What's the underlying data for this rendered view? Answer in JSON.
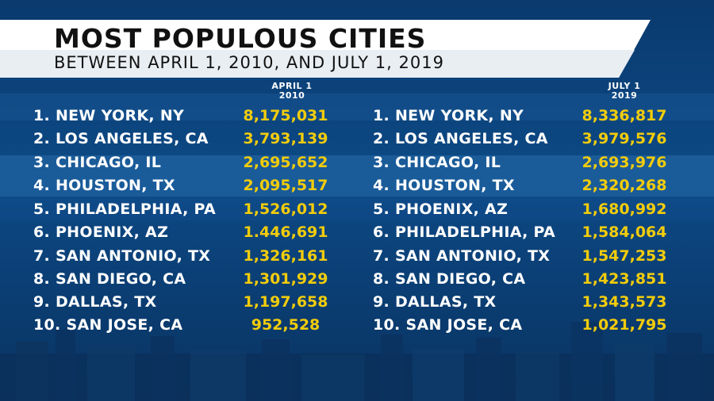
{
  "title": "MOST POPULOUS CITIES",
  "subtitle": "BETWEEN APRIL 1, 2010, AND JULY 1, 2019",
  "columns": [
    {
      "line1": "APRIL 1",
      "line2": "2010"
    },
    {
      "line1": "JULY 1",
      "line2": "2019"
    }
  ],
  "table_2010": [
    {
      "city": "1. NEW YORK, NY",
      "population": "8,175,031"
    },
    {
      "city": "2. LOS ANGELES, CA",
      "population": "3,793,139"
    },
    {
      "city": "3. CHICAGO, IL",
      "population": "2,695,652"
    },
    {
      "city": "4. HOUSTON, TX",
      "population": "2,095,517"
    },
    {
      "city": "5. PHILADELPHIA, PA",
      "population": "1,526,012"
    },
    {
      "city": "6. PHOENIX, AZ",
      "population": "1.446,691"
    },
    {
      "city": "7. SAN ANTONIO, TX",
      "population": "1,326,161"
    },
    {
      "city": "8.  SAN DIEGO, CA",
      "population": "1,301,929"
    },
    {
      "city": "9.  DALLAS, TX",
      "population": "1,197,658"
    },
    {
      "city": "10.  SAN JOSE, CA",
      "population": "952,528"
    }
  ],
  "table_2019": [
    {
      "city": "1. NEW YORK, NY",
      "population": "8,336,817"
    },
    {
      "city": "2. LOS ANGELES, CA",
      "population": "3,979,576"
    },
    {
      "city": "3. CHICAGO, IL",
      "population": "2,693,976"
    },
    {
      "city": "4. HOUSTON, TX",
      "population": "2,320,268"
    },
    {
      "city": "5. PHOENIX, AZ",
      "population": "1,680,992"
    },
    {
      "city": "6. PHILADELPHIA, PA",
      "population": "1,584,064"
    },
    {
      "city": "7.  SAN ANTONIO, TX",
      "population": "1,547,253"
    },
    {
      "city": "8.  SAN DIEGO, CA",
      "population": "1,423,851"
    },
    {
      "city": "9.  DALLAS, TX",
      "population": "1,343,573"
    },
    {
      "city": "10.  SAN JOSE, CA",
      "population": "1,021,795"
    }
  ],
  "colors": {
    "background": "#0b3f75",
    "band_light": "#1a5e9e",
    "title_card": "#ffffff",
    "title_text": "#111111",
    "city_text": "#ffffff",
    "population_text": "#f2cc0c"
  }
}
